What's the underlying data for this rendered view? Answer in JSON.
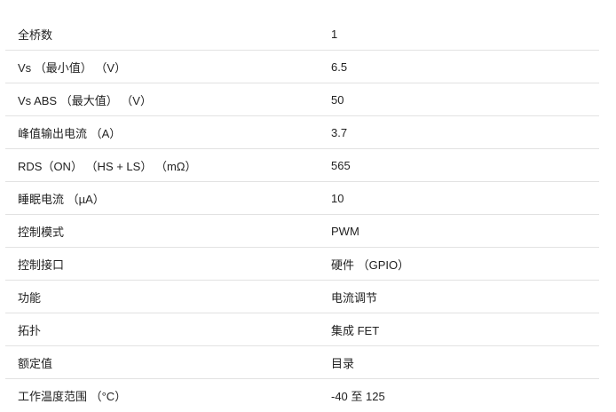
{
  "rows": [
    {
      "label": "全桥数",
      "value": "1"
    },
    {
      "label": "Vs （最小值） （V）",
      "value": "6.5"
    },
    {
      "label": "Vs ABS （最大值） （V）",
      "value": "50"
    },
    {
      "label": "峰值输出电流 （A）",
      "value": "3.7"
    },
    {
      "label": "RDS（ON） （HS + LS） （mΩ）",
      "value": "565"
    },
    {
      "label": "睡眠电流 （µA）",
      "value": "10"
    },
    {
      "label": "控制模式",
      "value": "PWM"
    },
    {
      "label": "控制接口",
      "value": "硬件 （GPIO）"
    },
    {
      "label": "功能",
      "value": "电流调节"
    },
    {
      "label": "拓扑",
      "value": "集成 FET"
    },
    {
      "label": "额定值",
      "value": "目录"
    },
    {
      "label": "工作温度范围 （°C）",
      "value": "-40 至 125"
    }
  ]
}
